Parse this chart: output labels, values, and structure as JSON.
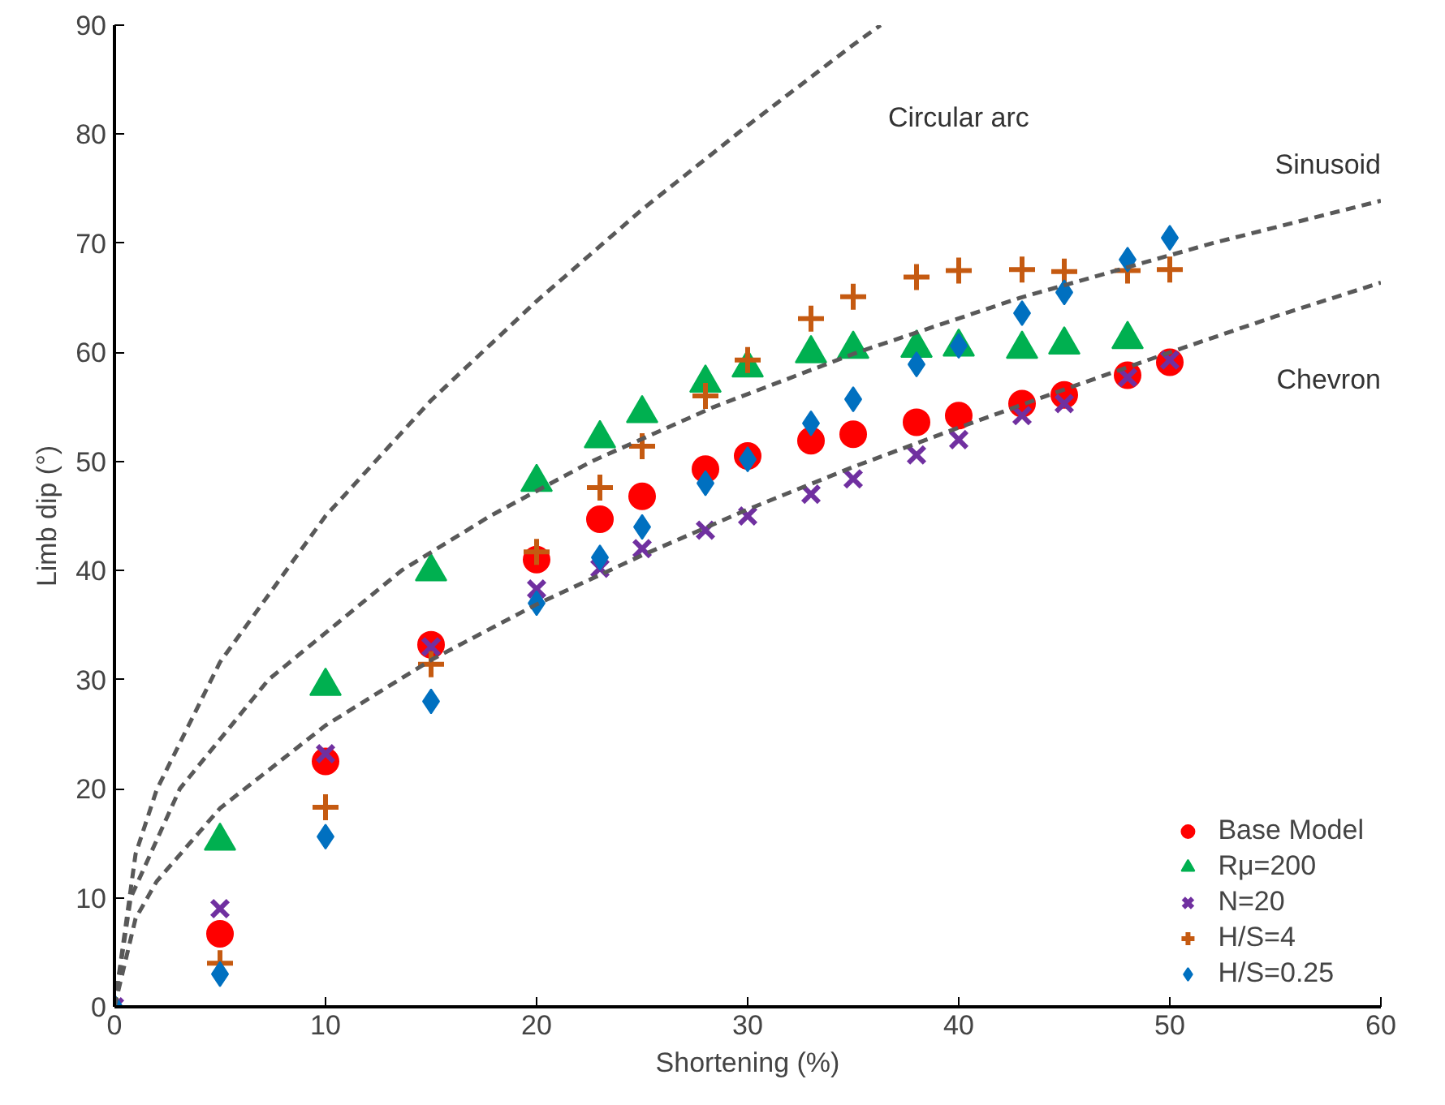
{
  "chart_data": {
    "type": "scatter",
    "xlabel": "Shortening (%)",
    "ylabel": "Limb dip (°)",
    "x": [
      0,
      5,
      10,
      15,
      20,
      23,
      25,
      28,
      30,
      33,
      35,
      38,
      40,
      43,
      45,
      48,
      50
    ],
    "series": [
      {
        "type": "line",
        "x": [
          0,
          1,
          2,
          5,
          10,
          15,
          20,
          25,
          30,
          35,
          36.3
        ],
        "values": [
          0,
          14,
          19.9,
          31.6,
          45,
          55.6,
          64.7,
          73.1,
          80.8,
          88.2,
          90
        ],
        "color": "#595959",
        "line_style": "dashed"
      },
      {
        "type": "line",
        "x": [
          0,
          0.77,
          3.1,
          7.3,
          13.6,
          17.8,
          22.6,
          28.4,
          35.2,
          42.9,
          52,
          60
        ],
        "values": [
          0,
          10,
          20,
          30,
          40,
          45,
          50,
          55,
          60,
          65,
          70,
          73.9
        ],
        "color": "#595959",
        "line_style": "dashed"
      },
      {
        "type": "line",
        "x": [
          0,
          1,
          2,
          5,
          10,
          15,
          20,
          25,
          30,
          35,
          40,
          45,
          50,
          55,
          60
        ],
        "values": [
          0,
          8.1,
          11.5,
          18.2,
          25.8,
          31.8,
          36.9,
          41.4,
          45.6,
          49.5,
          53.1,
          56.6,
          60,
          63.3,
          66.4
        ],
        "color": "#595959",
        "line_style": "dashed"
      },
      {
        "name": "Base Model",
        "marker": "circle",
        "color": "#ff0000",
        "values": [
          null,
          6.7,
          22.5,
          33.2,
          41,
          44.7,
          46.8,
          49.3,
          50.5,
          51.9,
          52.5,
          53.6,
          54.2,
          55.3,
          56.1,
          57.9,
          59.1
        ]
      },
      {
        "name": "Rμ=200",
        "marker": "triangle",
        "color": "#00b050",
        "values": [
          null,
          15.2,
          29.4,
          39.9,
          48.1,
          52.1,
          54.4,
          57.2,
          58.6,
          59.9,
          60.3,
          60.4,
          60.5,
          60.3,
          60.7,
          61.2,
          null
        ]
      },
      {
        "name": "N=20",
        "marker": "x",
        "color": "#7030a0",
        "values": [
          0,
          9,
          23.2,
          33,
          38.3,
          40.2,
          42,
          43.7,
          45,
          47,
          48.4,
          50.6,
          52,
          54.2,
          55.3,
          57.7,
          59.3
        ]
      },
      {
        "name": "H/S=4",
        "marker": "cross",
        "color": "#c55a11",
        "values": [
          null,
          4,
          18.3,
          31.4,
          41.7,
          47.6,
          51.4,
          56,
          59.3,
          63.1,
          65.1,
          66.9,
          67.5,
          67.6,
          67.4,
          67.5,
          67.6
        ]
      },
      {
        "name": "H/S=0.25",
        "marker": "diamond",
        "color": "#0070c0",
        "values": [
          0,
          3,
          15.6,
          28,
          37,
          41.2,
          44,
          48,
          50.2,
          53.5,
          55.7,
          58.9,
          60.6,
          63.6,
          65.5,
          68.5,
          70.5
        ]
      }
    ],
    "annotations": [
      "Circular arc",
      "Sinusoid",
      "Chevron"
    ],
    "xlim": [
      0,
      60
    ],
    "ylim": [
      0,
      90
    ],
    "xticks": [
      0,
      10,
      20,
      30,
      40,
      50,
      60
    ],
    "yticks": [
      0,
      10,
      20,
      30,
      40,
      50,
      60,
      70,
      80,
      90
    ],
    "grid": false,
    "legend": "bottom right"
  }
}
